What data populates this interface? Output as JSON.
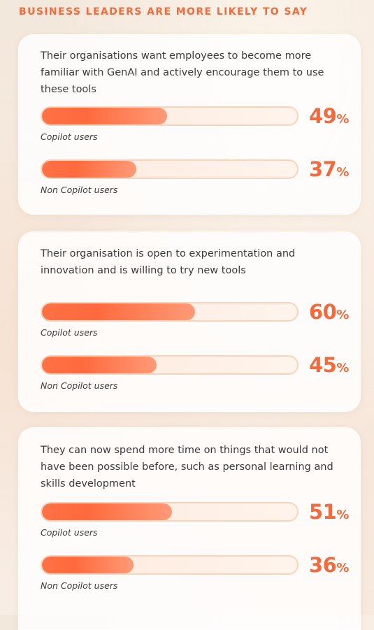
{
  "heading": "BUSINESS LEADERS ARE MORE LIKELY TO SAY",
  "colors": {
    "accent": "#f26a3d",
    "bar_fill": "#ff6a3d",
    "track": "#fde9dc"
  },
  "chart_data": [
    {
      "type": "bar",
      "title": "Their organisations want employees to become more familiar with GenAI and actively encourage them to use these tools",
      "categories": [
        "Copilot users",
        "Non Copilot users"
      ],
      "values": [
        49,
        37
      ],
      "ylim": [
        0,
        100
      ],
      "unit": "%"
    },
    {
      "type": "bar",
      "title": "Their organisation is open to experimentation and innovation and is willing to try new tools",
      "categories": [
        "Copilot users",
        "Non Copilot users"
      ],
      "values": [
        60,
        45
      ],
      "ylim": [
        0,
        100
      ],
      "unit": "%"
    },
    {
      "type": "bar",
      "title": "They can now spend more time on things that would not have been possible before, such as personal learning and skills development",
      "categories": [
        "Copilot users",
        "Non Copilot users"
      ],
      "values": [
        51,
        36
      ],
      "ylim": [
        0,
        100
      ],
      "unit": "%"
    }
  ]
}
